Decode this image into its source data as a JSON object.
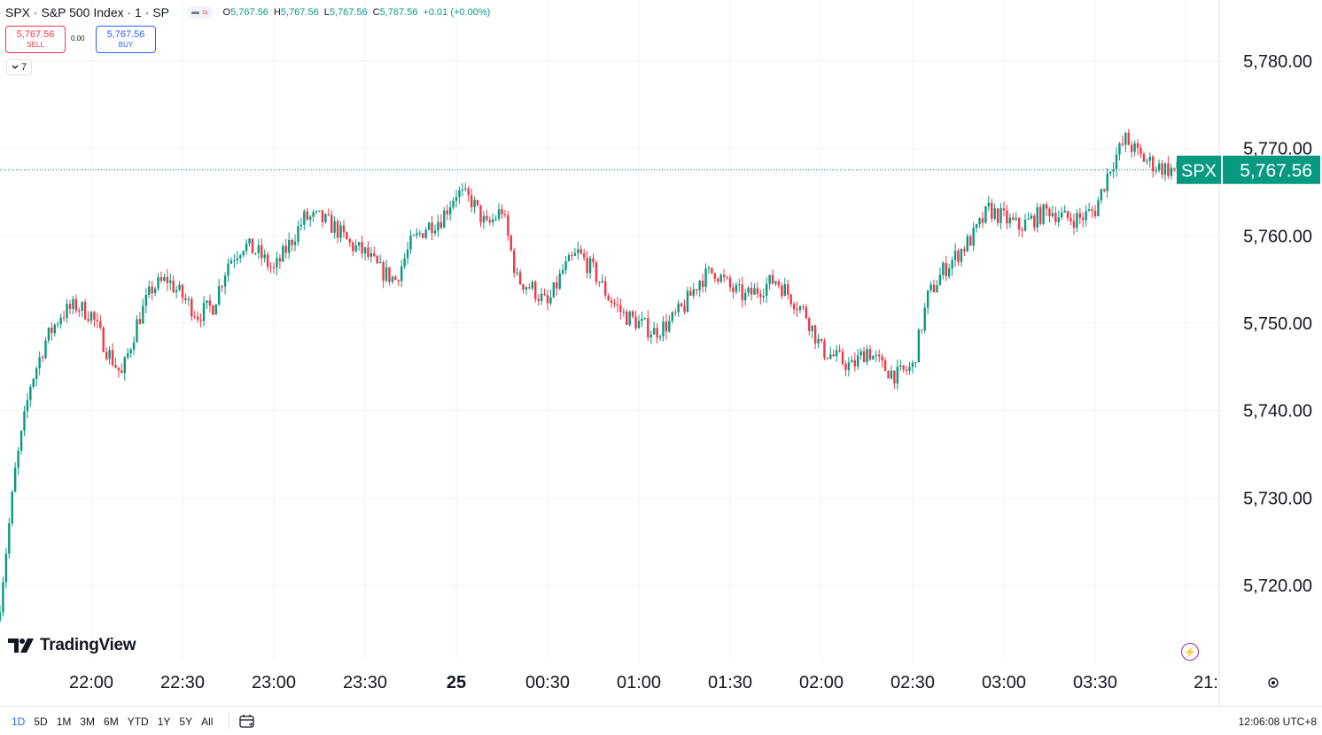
{
  "header": {
    "symbol_title": "SPX · S&P 500 Index · 1 · SP",
    "ohlc": [
      {
        "label": "O",
        "value": "5,767.56"
      },
      {
        "label": "H",
        "value": "5,767.56"
      },
      {
        "label": "L",
        "value": "5,767.56"
      },
      {
        "label": "C",
        "value": "5,767.56"
      },
      {
        "label": "",
        "value": "+0.01 (+0.00%)"
      }
    ]
  },
  "trade": {
    "sell_price": "5,767.56",
    "sell_label": "SELL",
    "spread": "0.00",
    "buy_price": "5,767.56",
    "buy_label": "BUY"
  },
  "indicators_count": "7",
  "logo_text": "TradingView",
  "price_label": {
    "symbol": "SPX",
    "price": "5,767.56"
  },
  "bottom_bar": {
    "ranges": [
      "1D",
      "5D",
      "1M",
      "3M",
      "6M",
      "YTD",
      "1Y",
      "5Y",
      "All"
    ],
    "active_range": "1D",
    "clock": "12:06:08 UTC+8"
  },
  "colors": {
    "up": "#089981",
    "down": "#f23645",
    "accent": "#2962ff",
    "grid": "#f0f3fa"
  },
  "icons": [
    "chevron-down-icon",
    "lightning-icon",
    "settings-icon",
    "calendar-goto-icon",
    "tradingview-logo-icon"
  ],
  "chart_data": {
    "type": "candlestick",
    "title": "SPX · S&P 500 Index · 1 · SP",
    "interval": "1 minute",
    "ylim": [
      5711,
      5787
    ],
    "y_ticks": [
      "5,720.00",
      "5,730.00",
      "5,740.00",
      "5,750.00",
      "5,760.00",
      "5,770.00",
      "5,780.00"
    ],
    "y_tick_values": [
      5720,
      5730,
      5740,
      5750,
      5760,
      5770,
      5780
    ],
    "x_ticks": [
      "22:00",
      "22:30",
      "23:00",
      "23:30",
      "25",
      "00:30",
      "01:00",
      "01:30",
      "02:00",
      "02:30",
      "03:00",
      "03:30",
      "21:"
    ],
    "last_price": 5767.56,
    "close_path": {
      "times": [
        "21:30",
        "21:35",
        "21:40",
        "21:45",
        "21:50",
        "21:55",
        "22:00",
        "22:05",
        "22:10",
        "22:15",
        "22:20",
        "22:25",
        "22:30",
        "22:35",
        "22:40",
        "22:45",
        "22:50",
        "22:55",
        "23:00",
        "23:05",
        "23:10",
        "23:15",
        "23:20",
        "23:25",
        "23:30",
        "23:35",
        "23:40",
        "23:45",
        "23:50",
        "23:55",
        "00:00",
        "00:05",
        "00:10",
        "00:15",
        "00:20",
        "00:25",
        "00:30",
        "00:35",
        "00:40",
        "00:45",
        "00:50",
        "00:55",
        "01:00",
        "01:05",
        "01:10",
        "01:15",
        "01:20",
        "01:25",
        "01:30",
        "01:35",
        "01:40",
        "01:45",
        "01:50",
        "01:55",
        "02:00",
        "02:05",
        "02:10",
        "02:15",
        "02:20",
        "02:25",
        "02:30",
        "02:35",
        "02:40",
        "02:45",
        "02:50",
        "02:55",
        "03:00",
        "03:05",
        "03:10",
        "03:15",
        "03:20",
        "03:25",
        "03:30",
        "03:35",
        "03:40",
        "03:45",
        "03:50",
        "03:55"
      ],
      "values": [
        5718,
        5733,
        5743,
        5748,
        5751,
        5752,
        5751,
        5747,
        5744,
        5750,
        5754,
        5755,
        5753,
        5751,
        5752,
        5757,
        5759,
        5758,
        5756,
        5759,
        5762,
        5762,
        5761,
        5759,
        5758,
        5756,
        5755,
        5759,
        5761,
        5762,
        5765,
        5764,
        5761,
        5763,
        5755,
        5754,
        5752,
        5756,
        5758,
        5756,
        5753,
        5751,
        5750,
        5749,
        5750,
        5752,
        5755,
        5756,
        5754,
        5753,
        5754,
        5755,
        5753,
        5751,
        5747,
        5746,
        5745,
        5747,
        5745,
        5744,
        5745,
        5753,
        5756,
        5758,
        5760,
        5763,
        5762,
        5761,
        5762,
        5763,
        5762,
        5762,
        5763,
        5768,
        5771,
        5769,
        5768,
        5767.56
      ]
    }
  }
}
